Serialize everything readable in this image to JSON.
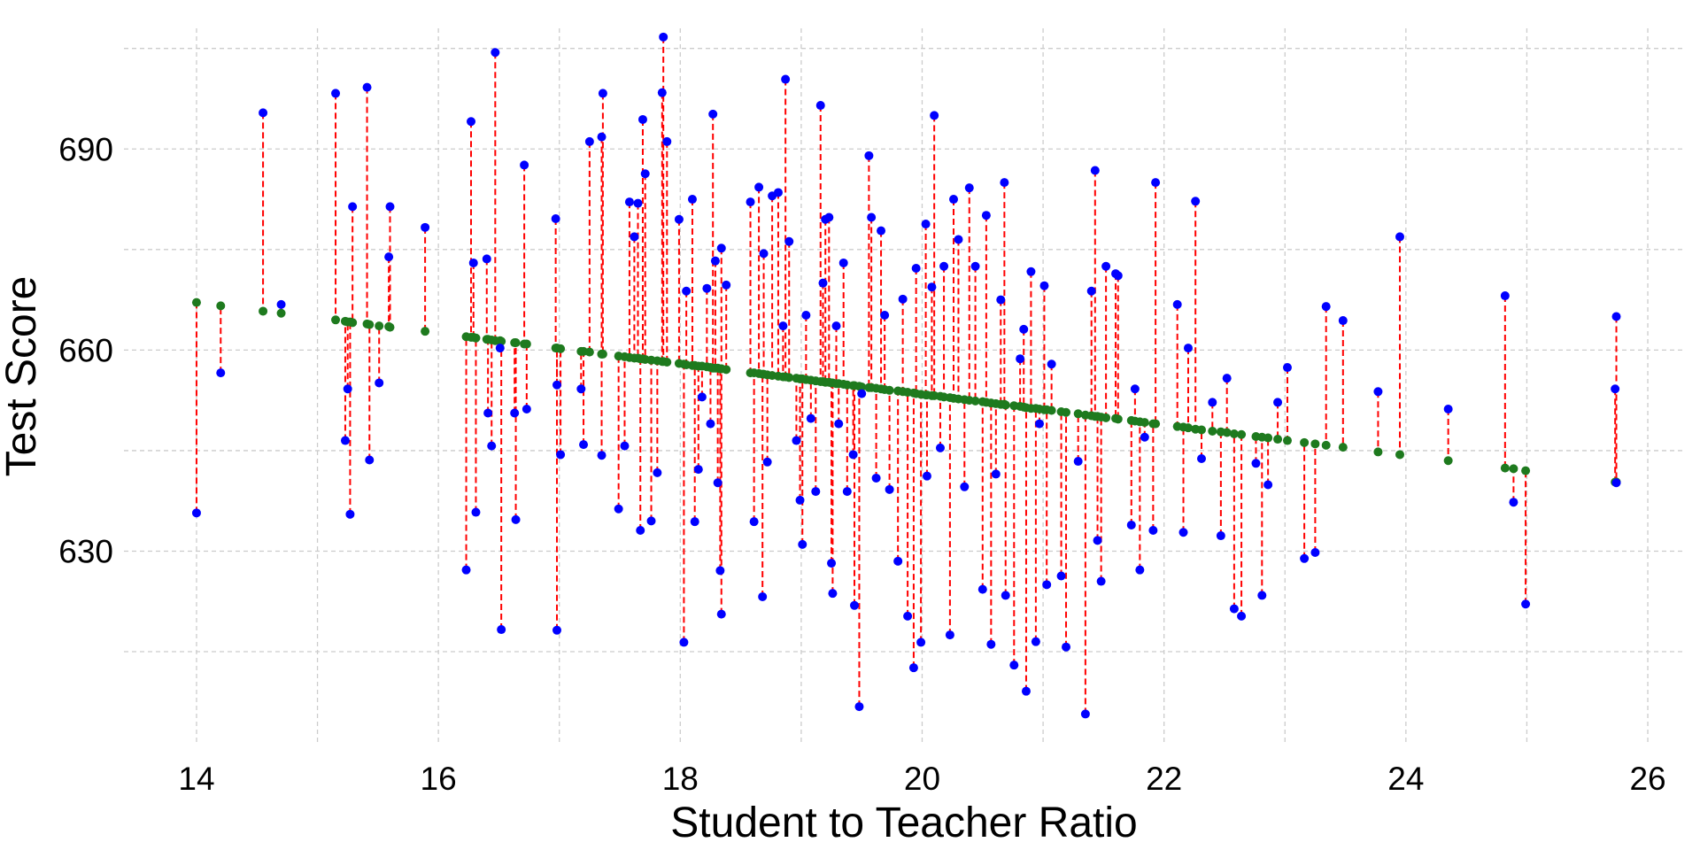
{
  "chart_data": {
    "type": "scatter-residual",
    "x_label": "Student to Teacher Ratio",
    "y_label": "Test Score",
    "xlim": [
      13.4,
      26.3
    ],
    "ylim": [
      601,
      708
    ],
    "xticks": [
      14,
      16,
      18,
      20,
      22,
      24,
      26
    ],
    "yticks": [
      630,
      660,
      690
    ],
    "x_minor_grid": [
      15,
      17,
      19,
      21,
      23,
      25
    ],
    "y_minor_grid": [
      615,
      645,
      675,
      705
    ],
    "grid": true,
    "grid_color": "#cccccc",
    "residual_color": "#ff0000",
    "x": [
      14.0,
      14.2,
      14.55,
      14.7,
      15.15,
      15.23,
      15.25,
      15.27,
      15.29,
      15.41,
      15.43,
      15.51,
      15.59,
      15.6,
      15.89,
      16.23,
      16.27,
      16.29,
      16.31,
      16.4,
      16.41,
      16.44,
      16.47,
      16.51,
      16.52,
      16.63,
      16.64,
      16.71,
      16.73,
      16.97,
      16.98,
      16.98,
      17.01,
      17.18,
      17.2,
      17.25,
      17.35,
      17.36,
      17.35,
      17.49,
      17.54,
      17.58,
      17.62,
      17.65,
      17.67,
      17.69,
      17.71,
      17.76,
      17.81,
      17.85,
      17.86,
      17.89,
      17.99,
      18.03,
      18.05,
      18.1,
      18.12,
      18.15,
      18.18,
      18.22,
      18.25,
      18.27,
      18.29,
      18.31,
      18.33,
      18.34,
      18.34,
      18.38,
      18.58,
      18.61,
      18.65,
      18.68,
      18.69,
      18.72,
      18.76,
      18.81,
      18.85,
      18.87,
      18.9,
      18.96,
      18.99,
      19.01,
      19.04,
      19.08,
      19.12,
      19.16,
      19.18,
      19.2,
      19.23,
      19.25,
      19.26,
      19.29,
      19.31,
      19.35,
      19.38,
      19.43,
      19.44,
      19.48,
      19.5,
      19.56,
      19.58,
      19.62,
      19.66,
      19.69,
      19.73,
      19.8,
      19.84,
      19.88,
      19.93,
      19.95,
      19.99,
      20.03,
      20.04,
      20.08,
      20.1,
      20.15,
      20.18,
      20.23,
      20.26,
      20.3,
      20.35,
      20.39,
      20.44,
      20.5,
      20.53,
      20.57,
      20.61,
      20.65,
      20.68,
      20.69,
      20.76,
      20.81,
      20.84,
      20.86,
      20.9,
      20.94,
      20.97,
      21.01,
      21.03,
      21.07,
      21.15,
      21.19,
      21.29,
      21.35,
      21.4,
      21.43,
      21.45,
      21.48,
      21.52,
      21.6,
      21.62,
      21.73,
      21.76,
      21.8,
      21.84,
      21.91,
      21.93,
      22.11,
      22.16,
      22.2,
      22.26,
      22.31,
      22.4,
      22.47,
      22.52,
      22.58,
      22.64,
      22.76,
      22.81,
      22.86,
      22.94,
      23.02,
      23.16,
      23.25,
      23.34,
      23.48,
      23.77,
      23.95,
      24.35,
      24.82,
      24.89,
      24.99,
      25.74,
      25.73,
      25.74
    ],
    "series": [
      {
        "color": "#0000ff",
        "values": [
          635.7,
          656.6,
          695.4,
          666.8,
          698.3,
          646.5,
          654.2,
          635.5,
          681.4,
          699.2,
          643.6,
          655.1,
          673.9,
          681.4,
          678.3,
          627.2,
          694.1,
          673.0,
          635.8,
          673.6,
          650.6,
          645.7,
          704.4,
          660.3,
          618.3,
          650.6,
          634.7,
          687.6,
          651.2,
          679.6,
          654.8,
          618.2,
          644.4,
          654.2,
          645.9,
          691.1,
          691.8,
          698.3,
          644.3,
          636.3,
          645.7,
          682.1,
          676.9,
          681.9,
          633.1,
          694.4,
          686.3,
          634.5,
          641.7,
          698.4,
          706.7,
          691.1,
          679.5,
          616.4,
          668.8,
          682.5,
          634.4,
          642.2,
          653.0,
          669.2,
          649.0,
          695.2,
          673.3,
          640.2,
          627.1,
          620.6,
          675.2,
          669.7,
          682.1,
          634.4,
          684.3,
          623.2,
          674.4,
          643.3,
          683.0,
          683.5,
          663.6,
          700.4,
          676.2,
          646.5,
          637.6,
          631.0,
          665.2,
          649.8,
          638.9,
          696.5,
          670.0,
          679.5,
          679.8,
          628.2,
          623.7,
          663.6,
          649.0,
          673.0,
          638.9,
          644.4,
          621.9,
          606.8,
          653.5,
          689.0,
          679.8,
          640.9,
          677.8,
          665.2,
          639.2,
          628.5,
          667.6,
          620.3,
          612.6,
          672.2,
          616.4,
          678.8,
          641.2,
          669.4,
          695.0,
          645.4,
          672.5,
          617.5,
          682.5,
          676.5,
          639.6,
          684.2,
          672.5,
          624.3,
          680.1,
          616.1,
          641.5,
          667.5,
          685.0,
          623.4,
          613.0,
          658.7,
          663.1,
          609.1,
          671.7,
          616.5,
          649.0,
          669.6,
          625.0,
          657.9,
          626.3,
          615.7,
          643.4,
          605.7,
          668.8,
          686.8,
          631.6,
          625.5,
          672.5,
          671.4,
          671.1,
          633.9,
          654.2,
          627.2,
          647.0,
          633.1,
          685.0,
          666.8,
          632.8,
          660.3,
          682.2,
          643.8,
          652.2,
          632.3,
          655.8,
          621.4,
          620.3,
          643.1,
          623.4,
          639.9,
          652.2,
          657.4,
          628.9,
          629.8,
          666.5,
          664.4,
          653.8,
          676.9,
          651.2,
          668.1,
          637.3,
          622.1,
          665.0,
          654.2,
          640.2
        ]
      },
      {
        "color": "#1e7a1e",
        "values": [
          667.1,
          666.6,
          665.8,
          665.5,
          664.5,
          664.3,
          664.2,
          664.2,
          664.1,
          663.9,
          663.8,
          663.6,
          663.5,
          663.4,
          662.8,
          662.0,
          661.9,
          661.9,
          661.8,
          661.6,
          661.6,
          661.5,
          661.4,
          661.4,
          661.3,
          661.1,
          661.1,
          660.9,
          660.9,
          660.3,
          660.3,
          660.3,
          660.2,
          659.8,
          659.8,
          659.7,
          659.4,
          659.4,
          659.4,
          659.1,
          659.0,
          658.9,
          658.8,
          658.8,
          658.7,
          658.7,
          658.6,
          658.5,
          658.4,
          658.3,
          658.3,
          658.2,
          658.0,
          657.9,
          657.8,
          657.7,
          657.7,
          657.6,
          657.6,
          657.5,
          657.4,
          657.3,
          657.3,
          657.3,
          657.2,
          657.2,
          657.2,
          657.1,
          656.6,
          656.6,
          656.5,
          656.4,
          656.4,
          656.3,
          656.2,
          656.1,
          656.0,
          656.0,
          655.9,
          655.8,
          655.7,
          655.7,
          655.6,
          655.5,
          655.4,
          655.3,
          655.3,
          655.2,
          655.2,
          655.1,
          655.1,
          655.0,
          655.0,
          654.9,
          654.8,
          654.7,
          654.7,
          654.6,
          654.5,
          654.4,
          654.4,
          654.3,
          654.2,
          654.1,
          654.0,
          653.9,
          653.8,
          653.7,
          653.6,
          653.5,
          653.4,
          653.3,
          653.3,
          653.2,
          653.2,
          653.1,
          653.0,
          652.9,
          652.8,
          652.7,
          652.6,
          652.5,
          652.4,
          652.3,
          652.2,
          652.1,
          652.0,
          651.9,
          651.9,
          651.8,
          651.7,
          651.6,
          651.5,
          651.4,
          651.3,
          651.3,
          651.2,
          651.1,
          651.1,
          651.0,
          650.8,
          650.7,
          650.5,
          650.3,
          650.2,
          650.1,
          650.1,
          650.0,
          649.9,
          649.8,
          649.7,
          649.5,
          649.4,
          649.3,
          649.2,
          649.0,
          649.0,
          648.6,
          648.5,
          648.4,
          648.2,
          648.1,
          647.9,
          647.8,
          647.7,
          647.5,
          647.4,
          647.1,
          647.0,
          646.9,
          646.7,
          646.5,
          646.2,
          646.0,
          645.8,
          645.5,
          644.8,
          644.4,
          643.5,
          642.4,
          642.3,
          642.0,
          640.3,
          640.3,
          640.3
        ]
      }
    ]
  }
}
